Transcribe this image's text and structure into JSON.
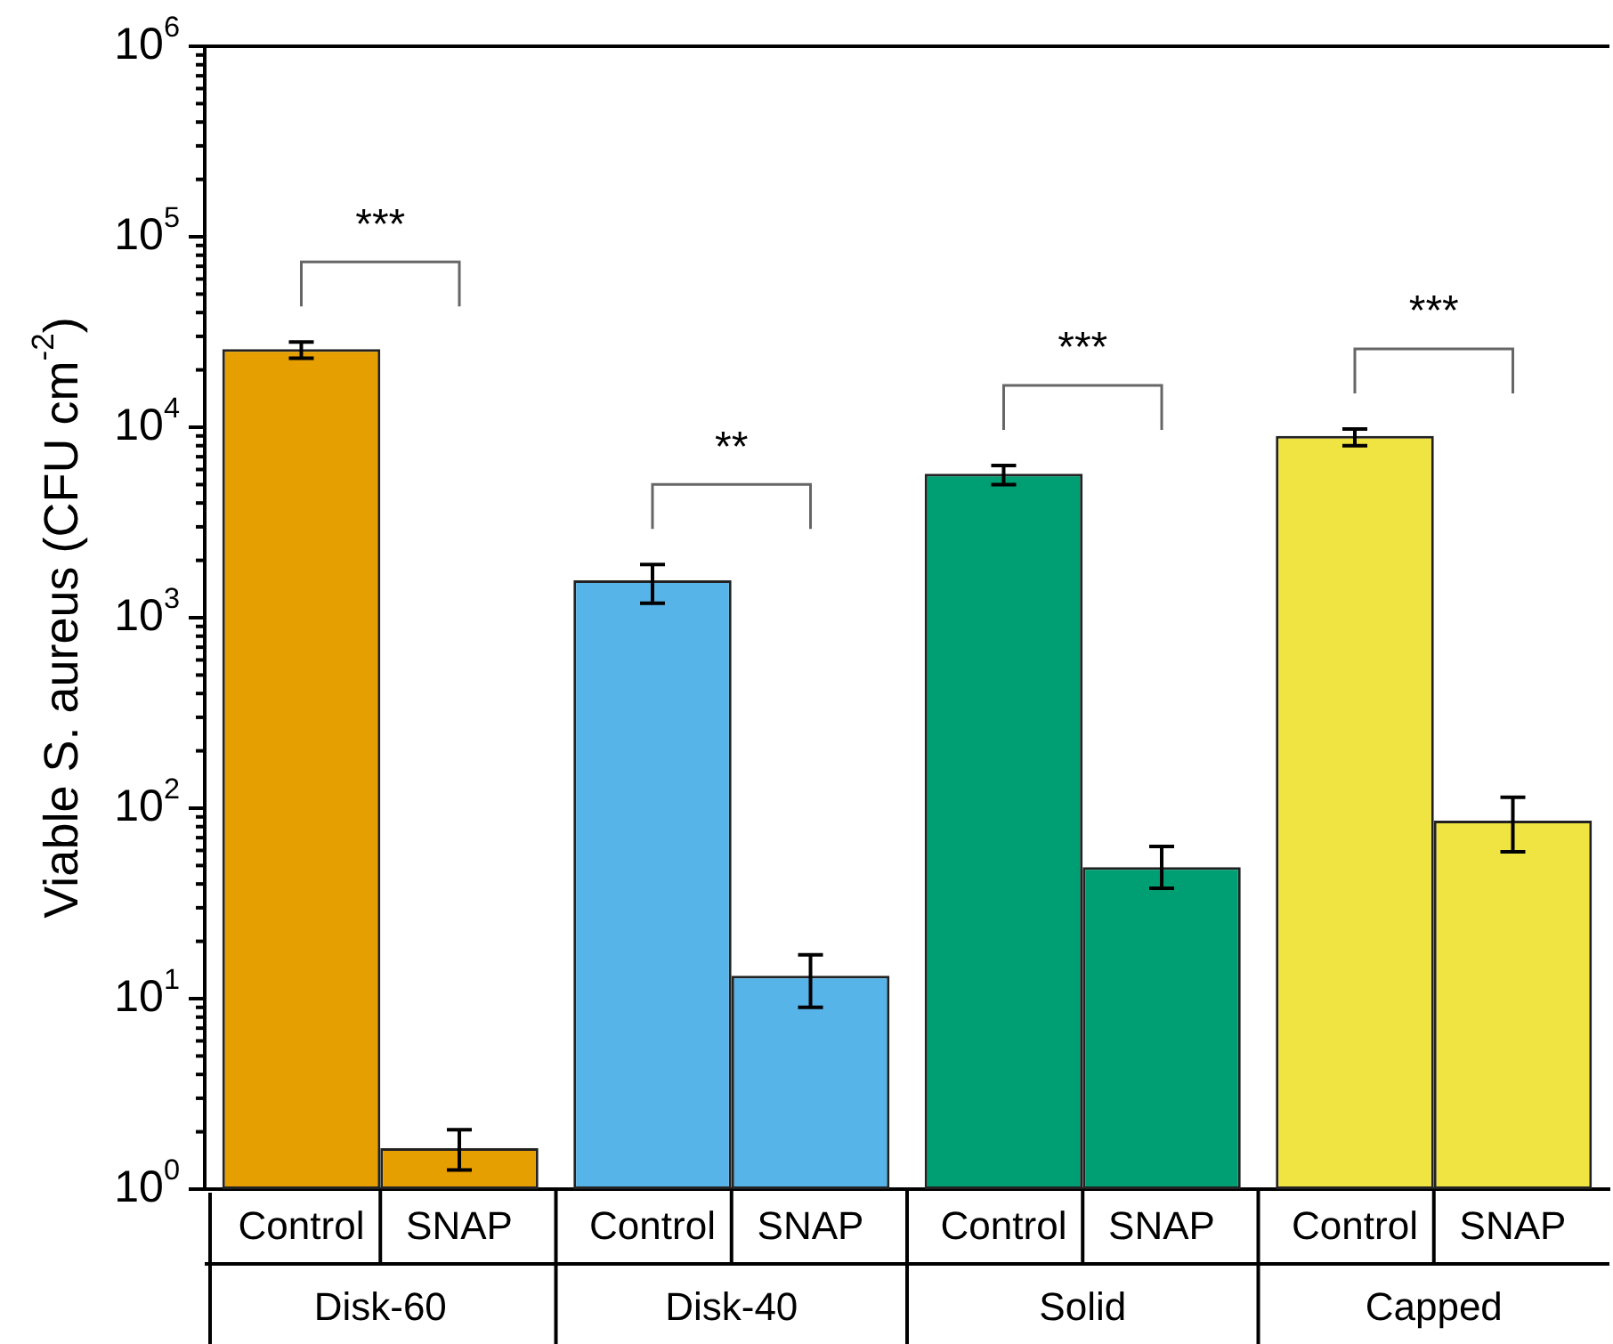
{
  "chart_data": {
    "type": "bar",
    "ylabel": "Viable S. aureus (CFU cm$^{-2}$)",
    "log": "y",
    "grid": false,
    "categories": [
      "Disk-60",
      "Disk-40",
      "Solid",
      "Capped"
    ],
    "series": [
      {
        "name": "Control",
        "colors": [
          "#e69f00",
          "#56b4e9",
          "#009e73",
          "#f0e442"
        ],
        "values": [
          25700,
          1570,
          5700,
          9000
        ],
        "errors": [
          [
            23000,
            28000
          ],
          [
            1190,
            1900
          ],
          [
            5000,
            6300
          ],
          [
            8000,
            9800
          ]
        ]
      },
      {
        "name": "SNAP",
        "colors": [
          "#e69f00",
          "#56b4e9",
          "#009e73",
          "#f0e442"
        ],
        "values": [
          1.64,
          13.2,
          49,
          86
        ],
        "errors": [
          [
            1.26,
            2.05
          ],
          [
            9,
            17
          ],
          [
            38,
            63
          ],
          [
            59,
            114
          ]
        ]
      }
    ],
    "ylim": [
      1,
      1000000
    ],
    "yticks": [
      {
        "value": 1,
        "label": "10$^{0}$"
      },
      {
        "value": 2,
        "label": null
      },
      {
        "value": 3,
        "label": null
      },
      {
        "value": 4,
        "label": null
      },
      {
        "value": 5,
        "label": null
      },
      {
        "value": 6,
        "label": null
      },
      {
        "value": 7,
        "label": null
      },
      {
        "value": 8,
        "label": null
      },
      {
        "value": 9,
        "label": null
      },
      {
        "value": 10,
        "label": "10$^{1}$"
      },
      {
        "value": 20,
        "label": null
      },
      {
        "value": 30,
        "label": null
      },
      {
        "value": 40,
        "label": null
      },
      {
        "value": 50,
        "label": null
      },
      {
        "value": 60,
        "label": null
      },
      {
        "value": 70,
        "label": null
      },
      {
        "value": 80,
        "label": null
      },
      {
        "value": 90,
        "label": null
      },
      {
        "value": 100,
        "label": "10$^{2}$"
      },
      {
        "value": 200,
        "label": null
      },
      {
        "value": 300,
        "label": null
      },
      {
        "value": 400,
        "label": null
      },
      {
        "value": 500,
        "label": null
      },
      {
        "value": 600,
        "label": null
      },
      {
        "value": 700,
        "label": null
      },
      {
        "value": 800,
        "label": null
      },
      {
        "value": 900,
        "label": null
      },
      {
        "value": 1000,
        "label": "10$^{3}$"
      },
      {
        "value": 2000,
        "label": null
      },
      {
        "value": 3000,
        "label": null
      },
      {
        "value": 4000,
        "label": null
      },
      {
        "value": 5000,
        "label": null
      },
      {
        "value": 6000,
        "label": null
      },
      {
        "value": 7000,
        "label": null
      },
      {
        "value": 8000,
        "label": null
      },
      {
        "value": 9000,
        "label": null
      },
      {
        "value": 10000,
        "label": "10$^{4}$"
      },
      {
        "value": 20000,
        "label": null
      },
      {
        "value": 30000,
        "label": null
      },
      {
        "value": 40000,
        "label": null
      },
      {
        "value": 50000,
        "label": null
      },
      {
        "value": 60000,
        "label": null
      },
      {
        "value": 70000,
        "label": null
      },
      {
        "value": 80000,
        "label": null
      },
      {
        "value": 90000,
        "label": null
      },
      {
        "value": 100000,
        "label": "10$^{5}$"
      },
      {
        "value": 200000,
        "label": null
      },
      {
        "value": 300000,
        "label": null
      },
      {
        "value": 400000,
        "label": null
      },
      {
        "value": 500000,
        "label": null
      },
      {
        "value": 600000,
        "label": null
      },
      {
        "value": 700000,
        "label": null
      },
      {
        "value": 800000,
        "label": null
      },
      {
        "value": 900000,
        "label": null
      },
      {
        "value": 1000000,
        "label": "10$^{6}$"
      }
    ],
    "annotations": [
      "***",
      "**",
      "***",
      "***"
    ],
    "legend": false
  }
}
